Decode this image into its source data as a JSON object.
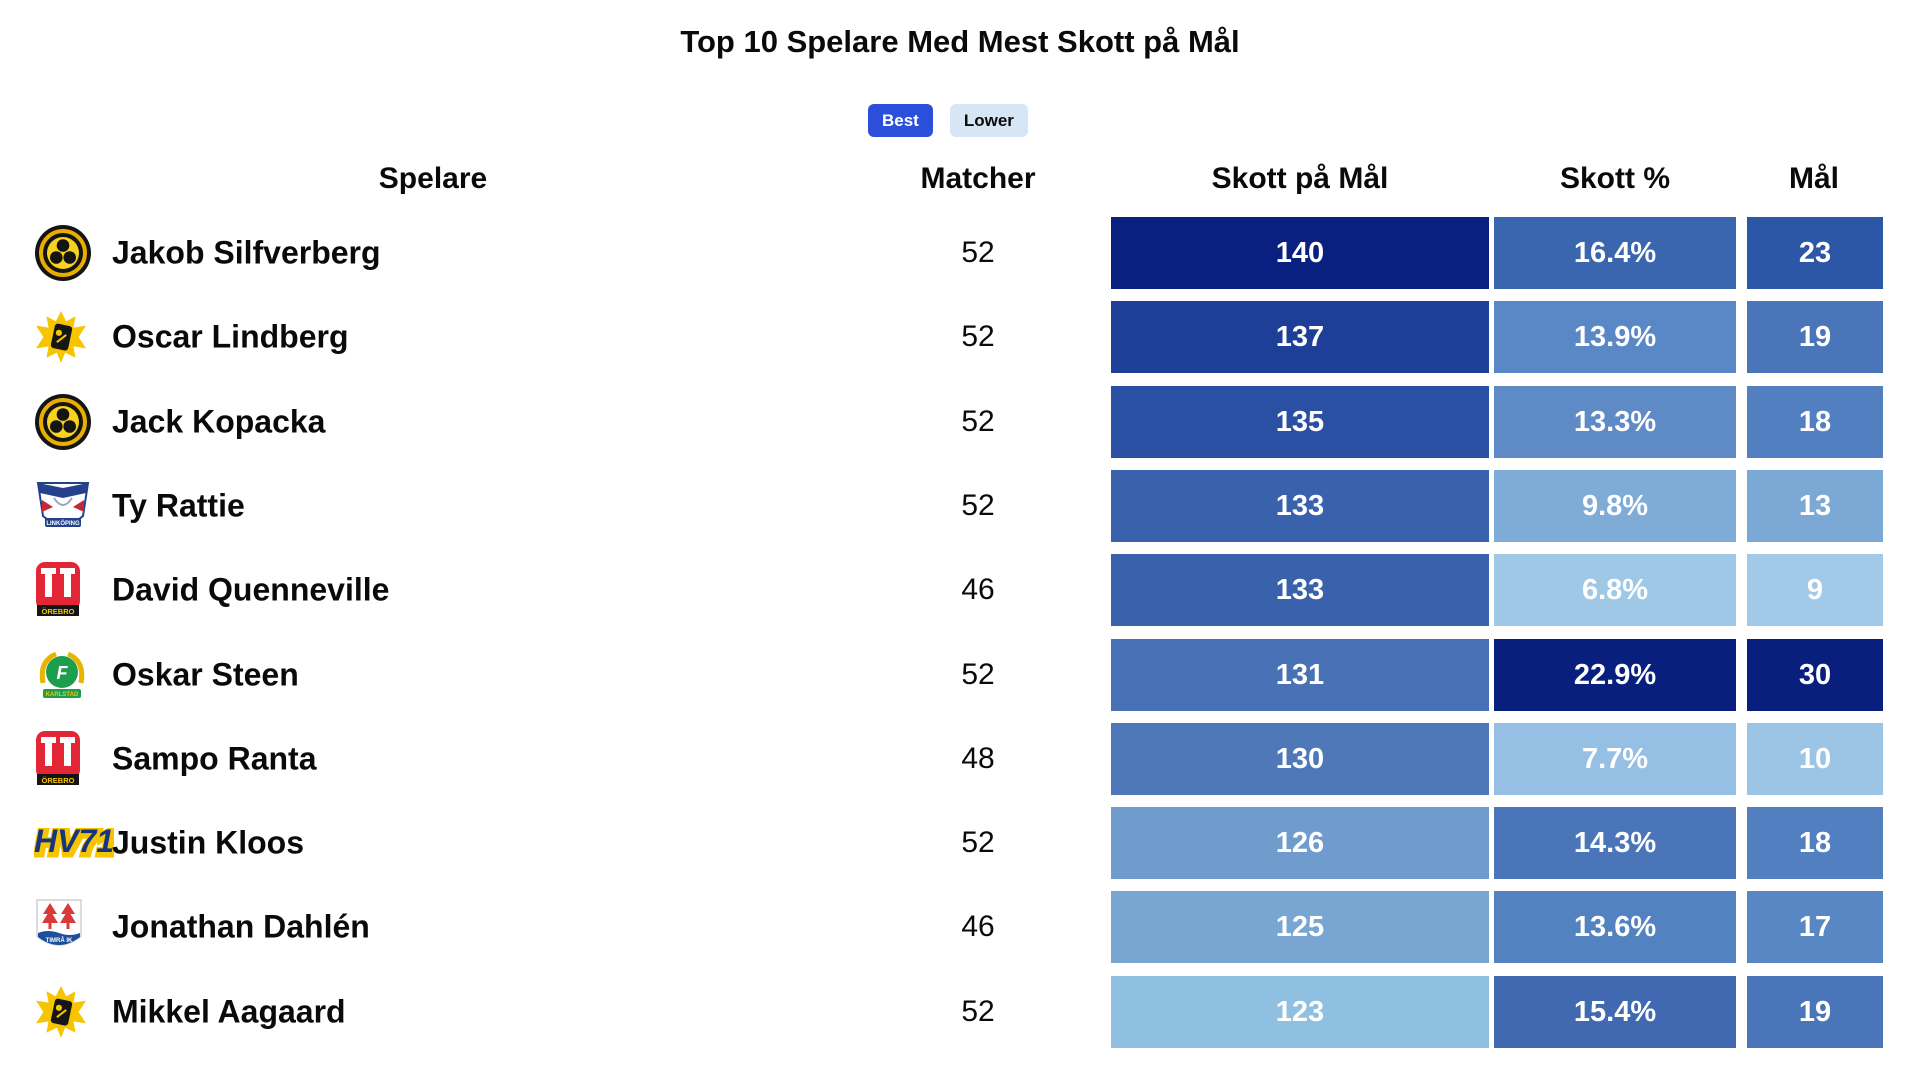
{
  "title": "Top 10 Spelare Med Mest Skott på Mål",
  "toggle": {
    "best_label": "Best",
    "lower_label": "Lower",
    "best_bg": "#2b4fdb",
    "lower_bg": "#d7e6f4"
  },
  "columns": {
    "player": "Spelare",
    "matches": "Matcher",
    "shots": "Skott på Mål",
    "pct": "Skott %",
    "goals": "Mål"
  },
  "rows": [
    {
      "player": "Jakob Silfverberg",
      "team": "brynas",
      "team_icon": "brynas-logo",
      "matches": "52",
      "shots": "140",
      "shots_color": "#0a2080",
      "pct": "16.4%",
      "pct_color": "#3a66af",
      "goals": "23",
      "goals_color": "#2c57a7"
    },
    {
      "player": "Oscar Lindberg",
      "team": "skelleftea",
      "team_icon": "skelleftea-logo",
      "matches": "52",
      "shots": "137",
      "shots_color": "#1e3f97",
      "pct": "13.9%",
      "pct_color": "#5a87c5",
      "goals": "19",
      "goals_color": "#4a76b9"
    },
    {
      "player": "Jack Kopacka",
      "team": "brynas",
      "team_icon": "brynas-logo",
      "matches": "52",
      "shots": "135",
      "shots_color": "#2a50a3",
      "pct": "13.3%",
      "pct_color": "#5e8ac6",
      "goals": "18",
      "goals_color": "#517fbf"
    },
    {
      "player": "Ty Rattie",
      "team": "linkoping",
      "team_icon": "linkoping-logo",
      "matches": "52",
      "shots": "133",
      "shots_color": "#3a62ac",
      "pct": "9.8%",
      "pct_color": "#7fabd7",
      "goals": "13",
      "goals_color": "#7ba8d5"
    },
    {
      "player": "David Quenneville",
      "team": "orebro",
      "team_icon": "orebro-logo",
      "matches": "46",
      "shots": "133",
      "shots_color": "#3a62ac",
      "pct": "6.8%",
      "pct_color": "#9fc8e7",
      "goals": "9",
      "goals_color": "#a2cae8"
    },
    {
      "player": "Oskar Steen",
      "team": "farjestad",
      "team_icon": "farjestad-logo",
      "matches": "52",
      "shots": "131",
      "shots_color": "#4872b5",
      "pct": "22.9%",
      "pct_color": "#081f7d",
      "goals": "30",
      "goals_color": "#081f7d"
    },
    {
      "player": "Sampo Ranta",
      "team": "orebro",
      "team_icon": "orebro-logo",
      "matches": "48",
      "shots": "130",
      "shots_color": "#4f78b8",
      "pct": "7.7%",
      "pct_color": "#95c0e3",
      "goals": "10",
      "goals_color": "#9cc5e5"
    },
    {
      "player": "Justin Kloos",
      "team": "hv71",
      "team_icon": "hv71-logo",
      "matches": "52",
      "shots": "126",
      "shots_color": "#6f9ccd",
      "pct": "14.3%",
      "pct_color": "#4a76b9",
      "goals": "18",
      "goals_color": "#517fbf"
    },
    {
      "player": "Jonathan Dahlén",
      "team": "timra",
      "team_icon": "timra-logo",
      "matches": "46",
      "shots": "125",
      "shots_color": "#78a5d2",
      "pct": "13.6%",
      "pct_color": "#5382c1",
      "goals": "17",
      "goals_color": "#5987c4"
    },
    {
      "player": "Mikkel Aagaard",
      "team": "skelleftea",
      "team_icon": "skelleftea-logo",
      "matches": "52",
      "shots": "123",
      "shots_color": "#8fc0e2",
      "pct": "15.4%",
      "pct_color": "#4069b1",
      "goals": "19",
      "goals_color": "#4a76b9"
    }
  ],
  "chart_data": {
    "type": "table",
    "title": "Top 10 Spelare Med Mest Skott på Mål",
    "columns": [
      "Spelare",
      "Matcher",
      "Skott på Mål",
      "Skott %",
      "Mål"
    ],
    "rows": [
      [
        "Jakob Silfverberg",
        52,
        140,
        16.4,
        23
      ],
      [
        "Oscar Lindberg",
        52,
        137,
        13.9,
        19
      ],
      [
        "Jack Kopacka",
        52,
        135,
        13.3,
        18
      ],
      [
        "Ty Rattie",
        52,
        133,
        9.8,
        13
      ],
      [
        "David Quenneville",
        46,
        133,
        6.8,
        9
      ],
      [
        "Oskar Steen",
        52,
        131,
        22.9,
        30
      ],
      [
        "Sampo Ranta",
        48,
        130,
        7.7,
        10
      ],
      [
        "Justin Kloos",
        52,
        126,
        14.3,
        18
      ],
      [
        "Jonathan Dahlén",
        46,
        125,
        13.6,
        17
      ],
      [
        "Mikkel Aagaard",
        52,
        123,
        15.4,
        19
      ]
    ],
    "heatmap_columns": [
      "Skott på Mål",
      "Skott %",
      "Mål"
    ],
    "colormap": "blues-darker-is-higher",
    "legend_toggle": [
      "Best",
      "Lower"
    ],
    "selected_toggle": "Best"
  }
}
